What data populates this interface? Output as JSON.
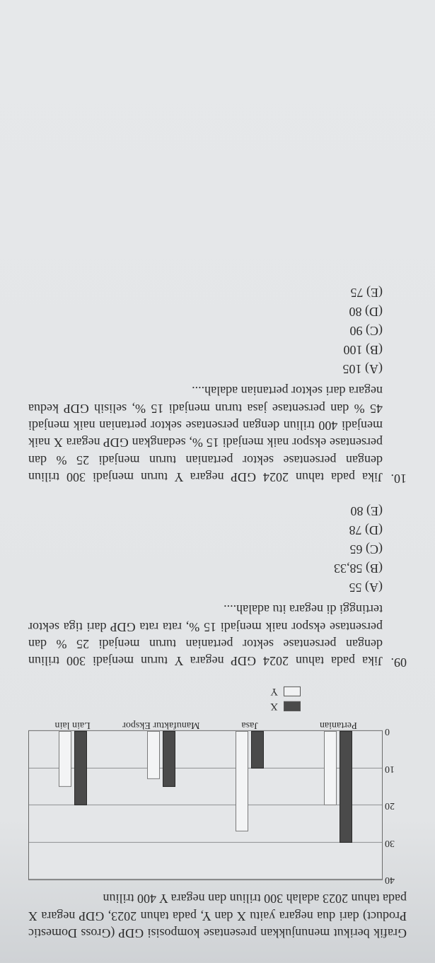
{
  "intro": "Grafik berikut menunjukkan presentase komposisi GDP (Gross Domestic Product) dari dua negara yaitu X dan Y, pada tahun 2023, GDP negara X  pada tahun 2023 adalah 300 triliun dan negara Y 400 triliun",
  "chart": {
    "ymax": 40,
    "ytick_step": 10,
    "yticks": [
      0,
      10,
      20,
      30,
      40
    ],
    "categories": [
      "Pertanian",
      "Jasa",
      "Manufaktur Ekspor",
      "Lain lain"
    ],
    "series": {
      "X": {
        "label": "X",
        "color": "#4a4a4a",
        "values": [
          30,
          10,
          15,
          20
        ]
      },
      "Y": {
        "label": "Y",
        "color": "#f3f4f5",
        "values": [
          20,
          27,
          13,
          15
        ]
      }
    },
    "grid_color": "#8d8f91",
    "background_color": "#e4e6e8"
  },
  "questions": [
    {
      "num": "09.",
      "text": "Jika pada tahun 2024 GDP negara Y turun menjadi 300 triliun dengan persentase sektor pertanian turun menjadi 25 % dan persentase ekspor naik menjadi 15 %, rata rata GDP dari tiga sektor tertinggi di negara itu adalah....",
      "options": [
        "(A) 55",
        "(B) 58,33",
        "(C) 65",
        "(D) 78",
        "(E) 80"
      ]
    },
    {
      "num": "10.",
      "text": "Jika pada tahun 2024 GDP negara Y turun menjadi 300 triliun dengan persentase sektor pertanian turun menjadi 25 % dan persentase ekspor naik menjadi 15 %,  sedangkan GDP negara  X naik  menjadi 400 triliun dengan persentase sektor pertanian naik menjadi 45 % dan persentase jasa turun menjadi 15 %, selisih GDP kedua negara dari sektor pertanian adalah....",
      "options": [
        "(A) 105",
        "(B) 100",
        "(C) 90",
        "(D) 80",
        "(E) 75"
      ]
    }
  ]
}
